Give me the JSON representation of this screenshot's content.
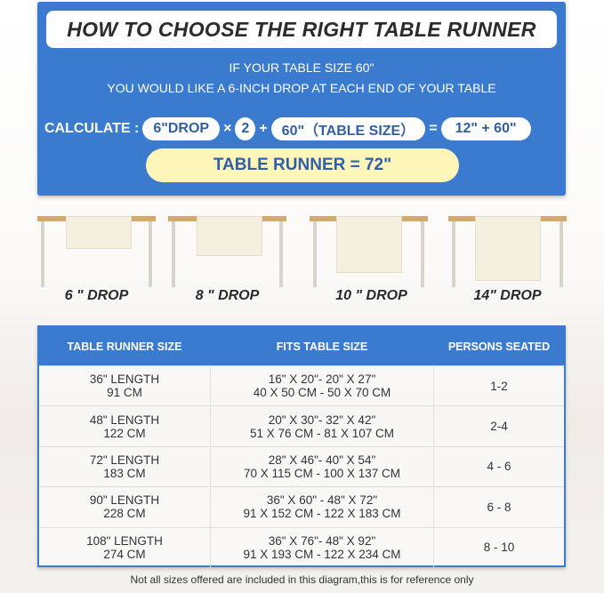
{
  "title": "HOW TO CHOOSE THE RIGHT TABLE RUNNER",
  "condition": [
    "IF YOUR TABLE SIZE 60\"",
    "YOU WOULD LIKE A 6-INCH DROP AT EACH END OF YOUR TABLE"
  ],
  "calc": {
    "label": "CALCULATE :",
    "drop": "6\"DROP",
    "times": "×",
    "two": "2",
    "plus": "+",
    "table": "60\"（TABLE SIZE）",
    "equals": "=",
    "sum": "12\" + 60\"",
    "result": "TABLE RUNNER = 72\""
  },
  "drops": [
    "6 \" DROP",
    "8 \" DROP",
    "10 \" DROP",
    "14\" DROP"
  ],
  "table": {
    "headers": [
      "TABLE RUNNER SIZE",
      "FITS TABLE SIZE",
      "PERSONS SEATED"
    ],
    "rows": [
      {
        "len": "36\" LENGTH",
        "cm": "91 CM",
        "fit_in": "16\" X 20\"- 20\" X 27\"",
        "fit_cm": "40 X 50 CM - 50 X 70 CM",
        "persons": "1-2"
      },
      {
        "len": "48\" LENGTH",
        "cm": "122 CM",
        "fit_in": "20\" X 30\"- 32\" X 42\"",
        "fit_cm": "51 X 76 CM - 81 X 107 CM",
        "persons": "2-4"
      },
      {
        "len": "72\" LENGTH",
        "cm": "183 CM",
        "fit_in": "28\" X 46\"- 40\" X 54\"",
        "fit_cm": "70 X 115 CM - 100 X 137 CM",
        "persons": "4 - 6"
      },
      {
        "len": "90\" LENGTH",
        "cm": "228 CM",
        "fit_in": "36\" X 60\" - 48\" X 72\"",
        "fit_cm": "91 X 152 CM - 122 X 183 CM",
        "persons": "6 - 8"
      },
      {
        "len": "108\" LENGTH",
        "cm": "274 CM",
        "fit_in": "36\" X 76\"- 48\" X 92\"",
        "fit_cm": "91 X 193 CM - 122 X 234 CM",
        "persons": "8 - 10"
      }
    ]
  },
  "footnote": "Not all sizes offered are included in this diagram,this is for reference only",
  "colors": {
    "primary": "#3a7bd0",
    "result": "#fdf6b8",
    "tabletop": "#d4aa6a"
  }
}
